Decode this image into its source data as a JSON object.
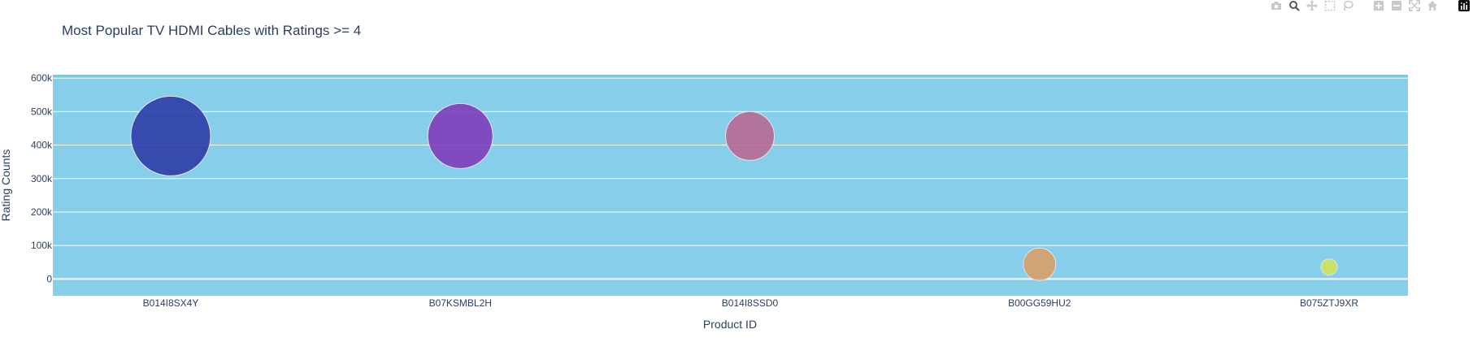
{
  "chart_data": {
    "type": "scatter",
    "title": "Most Popular TV HDMI Cables with Ratings >= 4",
    "xlabel": "Product ID",
    "ylabel": "Rating Counts",
    "categories": [
      "B014I8SX4Y",
      "B07KSMBL2H",
      "B014I8SSD0",
      "B00GG59HU2",
      "B075ZTJ9XR"
    ],
    "values": [
      426973,
      426973,
      426973,
      44054,
      35877
    ],
    "colors": [
      "#2f3ca6",
      "#7e3dba",
      "#b86a92",
      "#d9a06a",
      "#d2e35a"
    ],
    "ylim": [
      -50000,
      610000
    ],
    "yticks": [
      0,
      100000,
      200000,
      300000,
      400000,
      500000,
      600000
    ],
    "ytick_labels": [
      "0",
      "100k",
      "200k",
      "300k",
      "400k",
      "500k",
      "600k"
    ],
    "grid": true,
    "plot_bgcolor": "#87ceeb",
    "gridcolor": "#ffffff"
  },
  "modebar": {
    "icons": [
      "camera-icon",
      "zoom-icon",
      "pan-icon",
      "box-select-icon",
      "lasso-icon",
      "zoom-in-icon",
      "zoom-out-icon",
      "autoscale-icon",
      "reset-axes-icon",
      "plotly-logo-icon"
    ]
  }
}
